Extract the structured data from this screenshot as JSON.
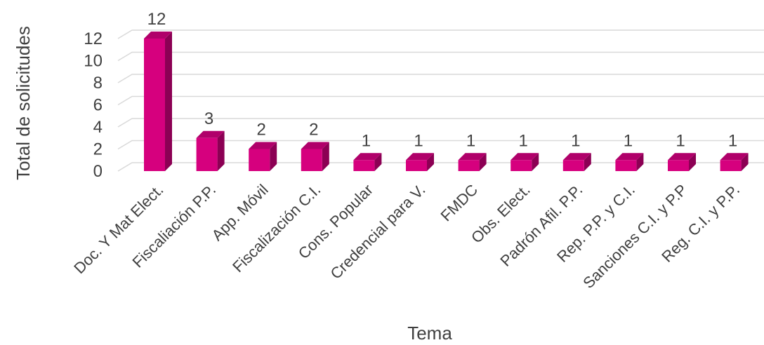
{
  "chart_data": {
    "type": "bar",
    "style": "3d-column",
    "xlabel": "Tema",
    "ylabel": "Total de solicitudes",
    "ylim": [
      0,
      12
    ],
    "yticks": [
      0,
      2,
      4,
      6,
      8,
      10,
      12
    ],
    "grid": true,
    "legend": "none",
    "categories": [
      "Doc. Y Mat Elect.",
      "Fiscaliación P.P.",
      "App. Móvil",
      "Fiscalización C.I.",
      "Cons. Popular",
      "Credencial para V.",
      "FMDC",
      "Obs. Elect.",
      "Padrón Afil. P.P.",
      "Rep. P.P. y C.I.",
      "Sanciones C.I. y P.P",
      "Reg. C.I. y P.P."
    ],
    "values": [
      12,
      3,
      2,
      2,
      1,
      1,
      1,
      1,
      1,
      1,
      1,
      1
    ],
    "colors": {
      "bar_front": "#d6007e",
      "bar_top": "#b0006a",
      "bar_side": "#8c0054",
      "grid": "#d9d9d9",
      "text": "#404040"
    }
  }
}
